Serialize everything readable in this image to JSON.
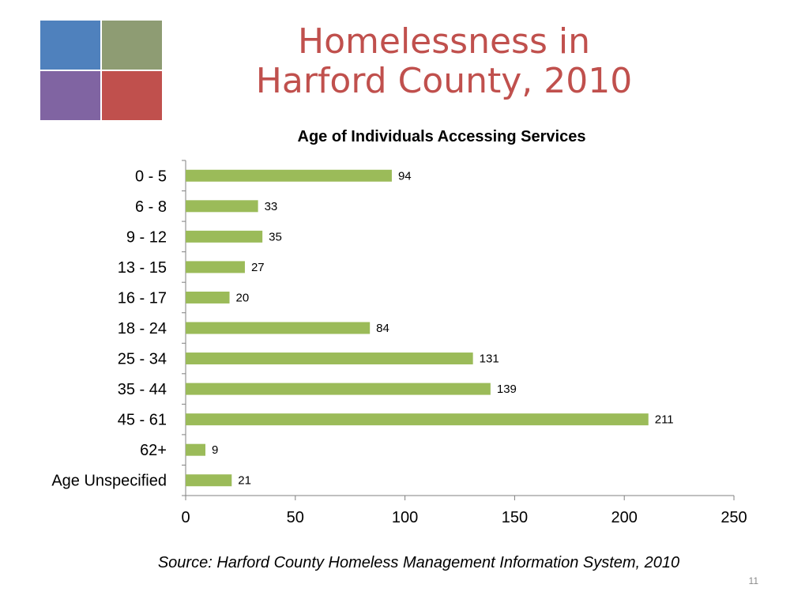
{
  "slide": {
    "title_line1": "Homelessness in",
    "title_line2": "Harford County, 2010",
    "source": "Source: Harford County Homeless Management Information System, 2010",
    "page_number": "11",
    "logo_colors": [
      "#4f81bd",
      "#8e9c73",
      "#8064a2",
      "#c0504d"
    ],
    "title_color": "#c0504d"
  },
  "chart_data": {
    "type": "bar",
    "orientation": "horizontal",
    "title": "Age of Individuals Accessing Services",
    "categories": [
      "0 - 5",
      "6 - 8",
      "9 - 12",
      "13 - 15",
      "16 - 17",
      "18 - 24",
      "25 - 34",
      "35 - 44",
      "45 - 61",
      "62+",
      "Age Unspecified"
    ],
    "values": [
      94,
      33,
      35,
      27,
      20,
      84,
      131,
      139,
      211,
      9,
      21
    ],
    "xlim": [
      0,
      250
    ],
    "xticks": [
      0,
      50,
      100,
      150,
      200,
      250
    ],
    "xlabel": "",
    "ylabel": "",
    "bar_color": "#9bbb59",
    "data_labels": true,
    "grid": false
  }
}
